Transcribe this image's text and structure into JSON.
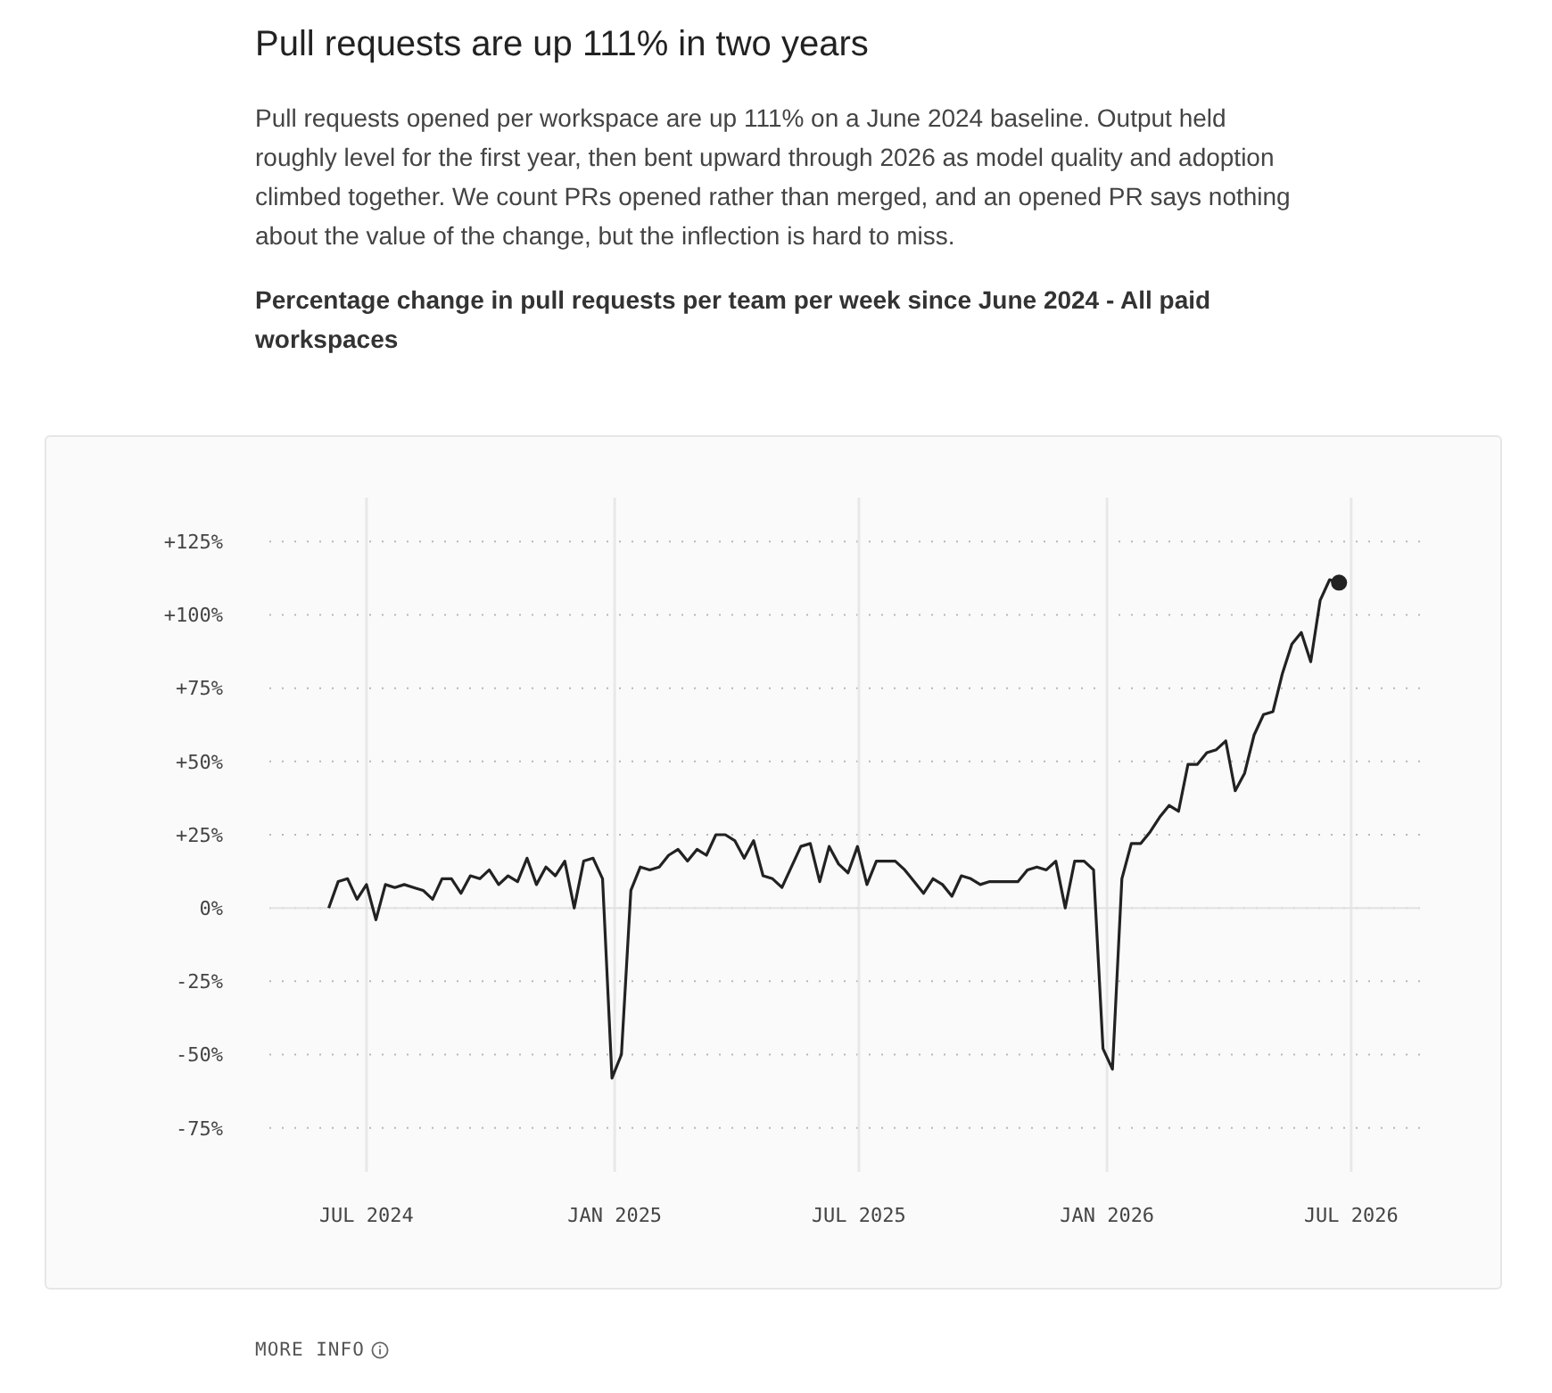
{
  "chart_data": {
    "type": "line",
    "title": "Pull requests are up 111% in two years",
    "subtitle": "Percentage change in pull requests per team per week since June 2024 - All paid workspaces",
    "annotations": [
      "Pull requests opened per workspace are up 111% on a June 2024 baseline. Output held roughly level for the first year, then bent upward through 2026 as model quality and adoption climbed together. We count PRs opened rather than merged, and an opened PR says nothing about the value of the change, but the inflection is hard to miss.",
      "MORE INFO"
    ],
    "x": [
      "2024-06-03",
      "2024-06-10",
      "2024-06-17",
      "2024-06-24",
      "2024-07-01",
      "2024-07-08",
      "2024-07-15",
      "2024-07-22",
      "2024-07-29",
      "2024-08-05",
      "2024-08-12",
      "2024-08-19",
      "2024-08-26",
      "2024-09-02",
      "2024-09-09",
      "2024-09-16",
      "2024-09-23",
      "2024-09-30",
      "2024-10-07",
      "2024-10-14",
      "2024-10-21",
      "2024-10-28",
      "2024-11-04",
      "2024-11-11",
      "2024-11-18",
      "2024-11-25",
      "2024-12-02",
      "2024-12-09",
      "2024-12-16",
      "2024-12-23",
      "2024-12-30",
      "2025-01-06",
      "2025-01-13",
      "2025-01-20",
      "2025-01-27",
      "2025-02-03",
      "2025-02-10",
      "2025-02-17",
      "2025-02-24",
      "2025-03-03",
      "2025-03-10",
      "2025-03-17",
      "2025-03-24",
      "2025-03-31",
      "2025-04-07",
      "2025-04-14",
      "2025-04-21",
      "2025-04-28",
      "2025-05-05",
      "2025-05-12",
      "2025-05-19",
      "2025-05-26",
      "2025-06-02",
      "2025-06-09",
      "2025-06-16",
      "2025-06-23",
      "2025-06-30",
      "2025-07-07",
      "2025-07-14",
      "2025-07-21",
      "2025-07-28",
      "2025-08-04",
      "2025-08-11",
      "2025-08-18",
      "2025-08-25",
      "2025-09-01",
      "2025-09-08",
      "2025-09-15",
      "2025-09-22",
      "2025-09-29",
      "2025-10-06",
      "2025-10-13",
      "2025-10-20",
      "2025-10-27",
      "2025-11-03",
      "2025-11-10",
      "2025-11-17",
      "2025-11-24",
      "2025-12-01",
      "2025-12-08",
      "2025-12-15",
      "2025-12-22",
      "2025-12-29",
      "2026-01-05",
      "2026-01-12",
      "2026-01-19",
      "2026-01-26",
      "2026-02-02",
      "2026-02-09",
      "2026-02-16",
      "2026-02-23",
      "2026-03-02",
      "2026-03-09",
      "2026-03-16",
      "2026-03-23",
      "2026-03-30",
      "2026-04-06",
      "2026-04-13",
      "2026-04-20",
      "2026-04-27",
      "2026-05-04",
      "2026-05-11",
      "2026-05-18",
      "2026-05-25",
      "2026-06-01",
      "2026-06-08",
      "2026-06-15",
      "2026-06-22"
    ],
    "series": [
      {
        "color": "#222222",
        "marker": "none",
        "values": [
          0,
          9,
          10,
          3,
          8,
          -4,
          8,
          7,
          8,
          7,
          6,
          3,
          10,
          10,
          5,
          11,
          10,
          13,
          8,
          11,
          9,
          17,
          8,
          14,
          11,
          16,
          0,
          16,
          17,
          10,
          -58,
          -50,
          6,
          14,
          13,
          14,
          18,
          20,
          16,
          20,
          18,
          25,
          25,
          23,
          17,
          23,
          11,
          10,
          7,
          14,
          21,
          22,
          9,
          21,
          15,
          12,
          21,
          8,
          16,
          16,
          16,
          13,
          9,
          5,
          10,
          8,
          4,
          11,
          10,
          8,
          9,
          9,
          9,
          9,
          13,
          14,
          13,
          16,
          0,
          16,
          16,
          13,
          -48,
          -55,
          10,
          22,
          22,
          26,
          31,
          35,
          33,
          49,
          49,
          53,
          54,
          57,
          40,
          46,
          59,
          66,
          67,
          80,
          90,
          94,
          84,
          105,
          112,
          111
        ]
      },
      {
        "type": "scatter",
        "color": "#222222",
        "marker": "circle",
        "x": [
          "2026-06-22"
        ],
        "values": [
          111
        ]
      }
    ],
    "line_style": "solid",
    "xlim": [
      "2024-04-20",
      "2026-08-21"
    ],
    "xticks": [
      {
        "value": "2024-07-01",
        "label": "JUL 2024"
      },
      {
        "value": "2025-01-01",
        "label": "JAN 2025"
      },
      {
        "value": "2025-07-01",
        "label": "JUL 2025"
      },
      {
        "value": "2026-01-01",
        "label": "JAN 2026"
      },
      {
        "value": "2026-07-01",
        "label": "JUL 2026"
      }
    ],
    "ylim": [
      -90,
      140
    ],
    "yticks": [
      {
        "value": -75,
        "label": "-75%"
      },
      {
        "value": -50,
        "label": "-50%"
      },
      {
        "value": -25,
        "label": "-25%"
      },
      {
        "value": 0,
        "label": "0%"
      },
      {
        "value": 25,
        "label": "+25%"
      },
      {
        "value": 50,
        "label": "+50%"
      },
      {
        "value": 75,
        "label": "+75%"
      },
      {
        "value": 100,
        "label": "+100%"
      },
      {
        "value": 125,
        "label": "+125%"
      }
    ],
    "grid": true,
    "ref_lines": [
      {
        "axis": "y",
        "value": 0,
        "color": "#e2e2e2",
        "line_style": "solid"
      }
    ]
  }
}
